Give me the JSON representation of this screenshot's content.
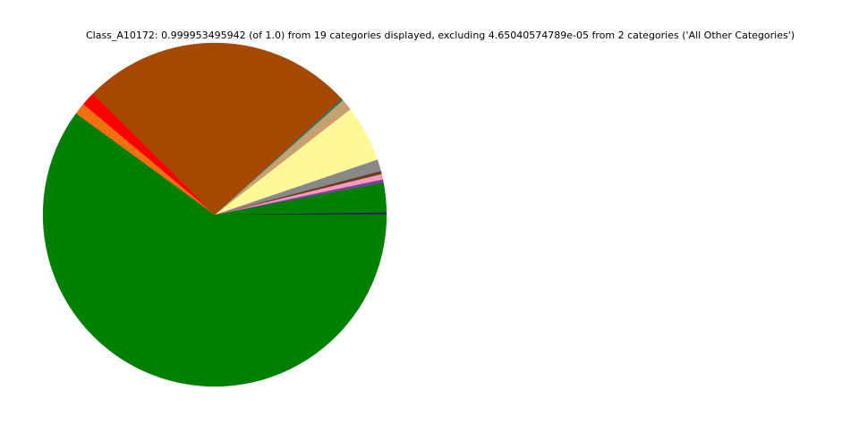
{
  "chart_data": {
    "type": "pie",
    "title": "Class_A10172: 0.999953495942 (of 1.0) from 19 categories displayed, excluding 4.65040574789e-05 from 2 categories ('All Other Categories')",
    "values": [
      0.0003,
      0.0003,
      0.0003,
      0.0003,
      0.0003,
      0.0003,
      0.0003,
      0.028,
      0.003,
      0.005,
      0.003,
      0.011,
      0.053,
      0.011,
      0.0015,
      0.258,
      0.013,
      0.011,
      0.6
    ],
    "colors": [
      "#000000",
      "#333333",
      "#1f3f7f",
      "#2f4f2f",
      "#000080",
      "#4b0082",
      "#222222",
      "#008000",
      "#7b3fa0",
      "#f49ac1",
      "#6b3e1a",
      "#888888",
      "#fff899",
      "#c8a070",
      "#008080",
      "#a64800",
      "#ff0000",
      "#f07010",
      "#008000"
    ],
    "start_angle": 0,
    "direction": "counterclockwise"
  }
}
